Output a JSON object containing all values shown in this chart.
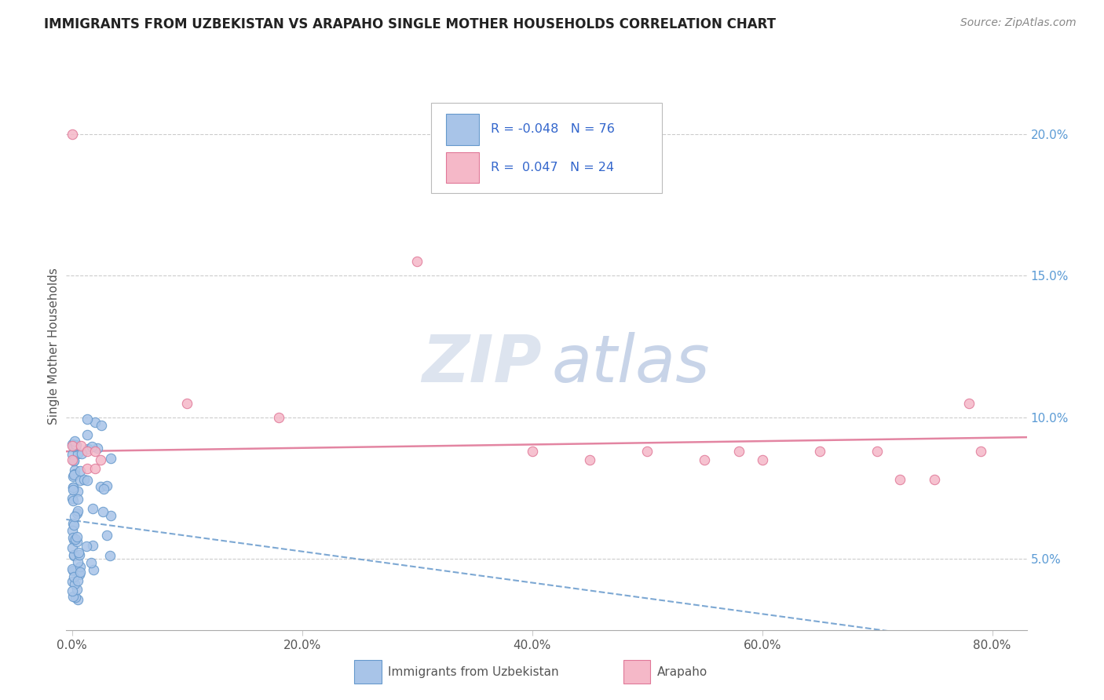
{
  "title": "IMMIGRANTS FROM UZBEKISTAN VS ARAPAHO SINGLE MOTHER HOUSEHOLDS CORRELATION CHART",
  "source_text": "Source: ZipAtlas.com",
  "ylabel": "Single Mother Households",
  "x_tick_vals": [
    0.0,
    0.2,
    0.4,
    0.6,
    0.8
  ],
  "x_tick_labels": [
    "0.0%",
    "20.0%",
    "40.0%",
    "60.0%",
    "80.0%"
  ],
  "y_tick_vals": [
    0.05,
    0.1,
    0.15,
    0.2
  ],
  "y_tick_labels": [
    "5.0%",
    "10.0%",
    "15.0%",
    "20.0%"
  ],
  "xlim": [
    -0.005,
    0.83
  ],
  "ylim": [
    0.025,
    0.225
  ],
  "legend_blue_R": "-0.048",
  "legend_blue_N": "76",
  "legend_pink_R": "0.047",
  "legend_pink_N": "24",
  "blue_color": "#a8c4e8",
  "blue_edge_color": "#6699cc",
  "pink_color": "#f5b8c8",
  "pink_edge_color": "#e07898",
  "watermark_ZIP_color": "#dde4ef",
  "watermark_atlas_color": "#c8d4e8",
  "grid_color": "#cccccc",
  "title_color": "#222222",
  "source_color": "#888888",
  "right_tick_color": "#5b9bd5",
  "legend_text_color": "#3366cc",
  "bottom_label_color": "#555555"
}
